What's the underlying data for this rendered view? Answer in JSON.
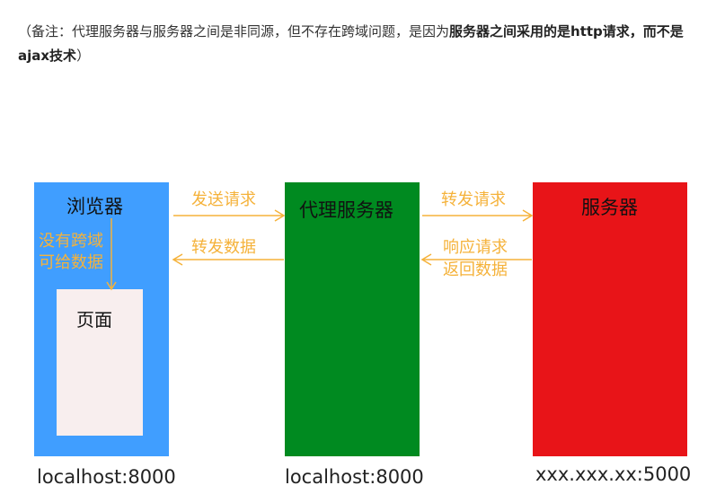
{
  "note": {
    "prefix": "（备注：代理服务器与服务器之间是非同源，但不存在跨域问题，是因为",
    "bold": "服务器之间采用的是http请求，而不是ajax技术",
    "suffix": "）"
  },
  "diagram": {
    "browser": {
      "title": "浏览器",
      "note_line1": "没有跨域",
      "note_line2": "可给数据",
      "page_label": "页面",
      "host": "localhost:8000"
    },
    "proxy": {
      "title": "代理服务器",
      "host": "localhost:8000"
    },
    "server": {
      "title": "服务器",
      "host": "xxx.xxx.xx:5000"
    },
    "arrows": {
      "send_request": "发送请求",
      "forward_data": "转发数据",
      "forward_request": "转发请求",
      "respond_request": "响应请求",
      "return_data": "返回数据"
    },
    "colors": {
      "browser": "#409eff",
      "proxy": "#008a20",
      "server": "#e81418",
      "page": "#f8eeee",
      "arrow": "#f5b23a"
    }
  }
}
